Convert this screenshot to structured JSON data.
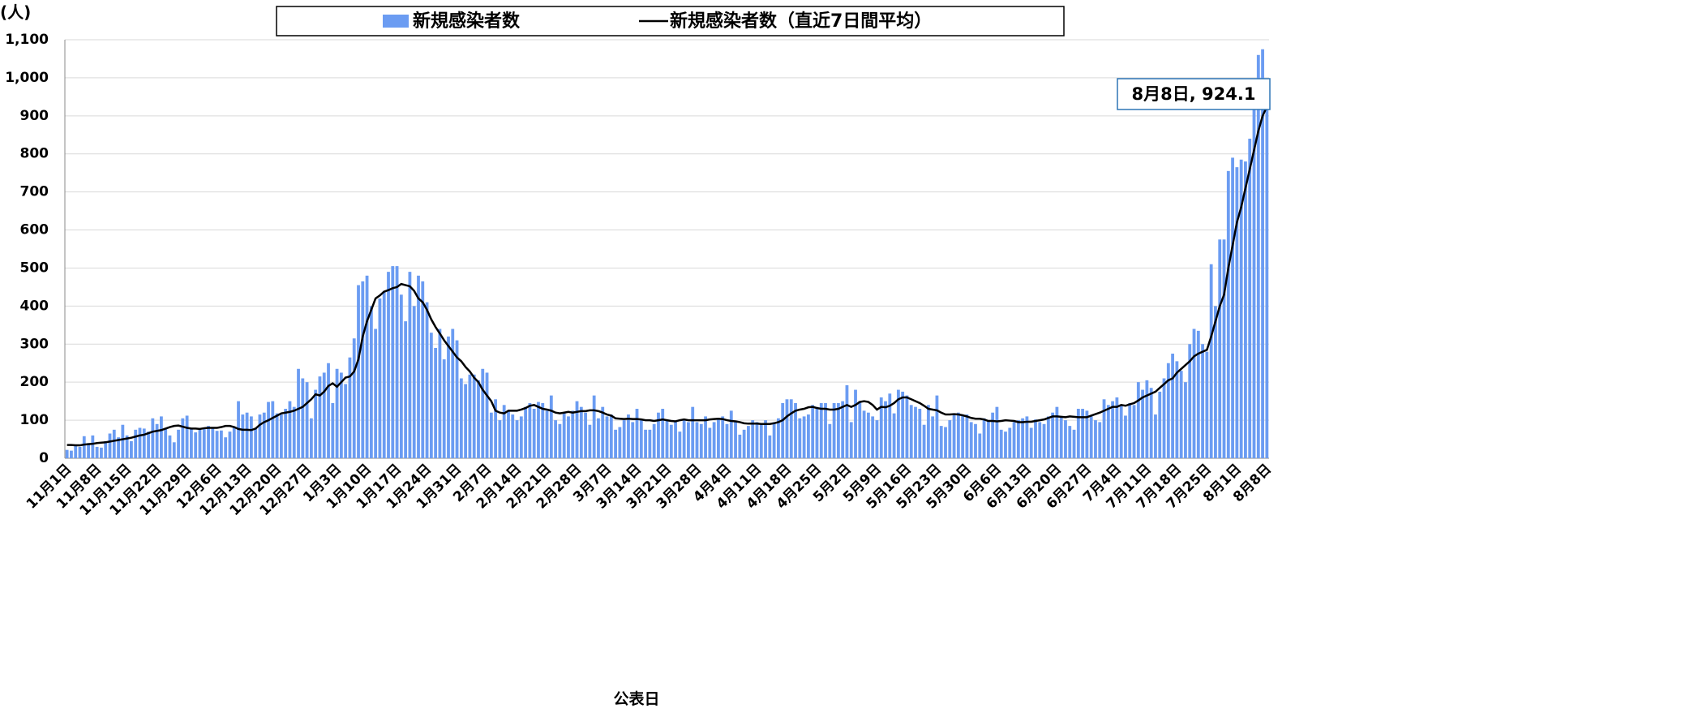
{
  "chart_data": {
    "type": "bar",
    "y_axis_label": "(人)",
    "x_axis_label": "公表日",
    "annotation": "8月8日, 924.1",
    "ylim": [
      0,
      1100
    ],
    "yticks": [
      0,
      100,
      200,
      300,
      400,
      500,
      600,
      700,
      800,
      900,
      {
        "value": 1000,
        "label": "1,000"
      },
      {
        "value": 1100,
        "label": "1,100"
      }
    ],
    "grid": true,
    "categories": [
      "11月1日",
      null,
      null,
      null,
      null,
      null,
      null,
      "11月8日",
      null,
      null,
      null,
      null,
      null,
      null,
      "11月15日",
      null,
      null,
      null,
      null,
      null,
      null,
      "11月22日",
      null,
      null,
      null,
      null,
      null,
      null,
      "11月29日",
      null,
      null,
      null,
      null,
      null,
      null,
      "12月6日",
      null,
      null,
      null,
      null,
      null,
      null,
      "12月13日",
      null,
      null,
      null,
      null,
      null,
      null,
      "12月20日",
      null,
      null,
      null,
      null,
      null,
      null,
      "12月27日",
      null,
      null,
      null,
      null,
      null,
      null,
      "1月3日",
      null,
      null,
      null,
      null,
      null,
      null,
      "1月10日",
      null,
      null,
      null,
      null,
      null,
      null,
      "1月17日",
      null,
      null,
      null,
      null,
      null,
      null,
      "1月24日",
      null,
      null,
      null,
      null,
      null,
      null,
      "1月31日",
      null,
      null,
      null,
      null,
      null,
      null,
      "2月7日",
      null,
      null,
      null,
      null,
      null,
      null,
      "2月14日",
      null,
      null,
      null,
      null,
      null,
      null,
      "2月21日",
      null,
      null,
      null,
      null,
      null,
      null,
      "2月28日",
      null,
      null,
      null,
      null,
      null,
      null,
      "3月7日",
      null,
      null,
      null,
      null,
      null,
      null,
      "3月14日",
      null,
      null,
      null,
      null,
      null,
      null,
      "3月21日",
      null,
      null,
      null,
      null,
      null,
      null,
      "3月28日",
      null,
      null,
      null,
      null,
      null,
      null,
      "4月4日",
      null,
      null,
      null,
      null,
      null,
      null,
      "4月11日",
      null,
      null,
      null,
      null,
      null,
      null,
      "4月18日",
      null,
      null,
      null,
      null,
      null,
      null,
      "4月25日",
      null,
      null,
      null,
      null,
      null,
      null,
      "5月2日",
      null,
      null,
      null,
      null,
      null,
      null,
      "5月9日",
      null,
      null,
      null,
      null,
      null,
      null,
      "5月16日",
      null,
      null,
      null,
      null,
      null,
      null,
      "5月23日",
      null,
      null,
      null,
      null,
      null,
      null,
      "5月30日",
      null,
      null,
      null,
      null,
      null,
      null,
      "6月6日",
      null,
      null,
      null,
      null,
      null,
      null,
      "6月13日",
      null,
      null,
      null,
      null,
      null,
      null,
      "6月20日",
      null,
      null,
      null,
      null,
      null,
      null,
      "6月27日",
      null,
      null,
      null,
      null,
      null,
      null,
      "7月4日",
      null,
      null,
      null,
      null,
      null,
      null,
      "7月11日",
      null,
      null,
      null,
      null,
      null,
      null,
      "7月18日",
      null,
      null,
      null,
      null,
      null,
      null,
      "7月25日",
      null,
      null,
      null,
      null,
      null,
      null,
      "8月1日",
      null,
      null,
      null,
      null,
      null,
      null,
      "8月8日"
    ],
    "series": [
      {
        "name": "新規感染者数",
        "type": "bar",
        "color": "#6b9cf2",
        "values": [
          22,
          20,
          35,
          30,
          58,
          40,
          60,
          30,
          28,
          45,
          65,
          75,
          55,
          88,
          60,
          45,
          75,
          80,
          78,
          70,
          105,
          90,
          110,
          80,
          60,
          42,
          75,
          105,
          112,
          78,
          68,
          75,
          78,
          85,
          80,
          72,
          73,
          55,
          70,
          80,
          150,
          115,
          120,
          110,
          80,
          115,
          120,
          148,
          150,
          118,
          115,
          130,
          150,
          135,
          235,
          210,
          200,
          105,
          180,
          215,
          225,
          250,
          145,
          235,
          225,
          195,
          265,
          315,
          455,
          465,
          480,
          400,
          340,
          420,
          440,
          490,
          505,
          505,
          430,
          360,
          490,
          400,
          480,
          465,
          410,
          330,
          290,
          340,
          260,
          320,
          340,
          310,
          210,
          195,
          220,
          220,
          205,
          235,
          225,
          120,
          155,
          100,
          140,
          125,
          115,
          100,
          110,
          135,
          145,
          130,
          148,
          145,
          125,
          165,
          100,
          90,
          120,
          110,
          125,
          150,
          135,
          120,
          88,
          165,
          105,
          135,
          110,
          115,
          75,
          82,
          100,
          115,
          95,
          130,
          100,
          75,
          75,
          90,
          120,
          130,
          100,
          88,
          95,
          70,
          100,
          95,
          135,
          95,
          90,
          110,
          80,
          95,
          105,
          110,
          90,
          125,
          95,
          62,
          75,
          85,
          100,
          95,
          88,
          100,
          60,
          95,
          105,
          145,
          155,
          155,
          145,
          105,
          110,
          115,
          140,
          135,
          145,
          145,
          90,
          145,
          145,
          150,
          192,
          95,
          180,
          150,
          125,
          120,
          110,
          100,
          160,
          150,
          170,
          118,
          180,
          175,
          165,
          140,
          135,
          130,
          88,
          140,
          110,
          165,
          85,
          82,
          100,
          115,
          120,
          115,
          115,
          95,
          90,
          65,
          105,
          100,
          120,
          135,
          75,
          70,
          80,
          95,
          100,
          105,
          110,
          80,
          102,
          95,
          90,
          110,
          120,
          135,
          110,
          100,
          85,
          75,
          130,
          130,
          125,
          110,
          100,
          95,
          155,
          140,
          150,
          160,
          140,
          112,
          145,
          140,
          200,
          180,
          205,
          185,
          115,
          175,
          210,
          250,
          275,
          255,
          230,
          200,
          300,
          340,
          335,
          300,
          280,
          510,
          400,
          575,
          575,
          755,
          790,
          765,
          785,
          780,
          840,
          945,
          1060,
          1075,
          988
        ]
      },
      {
        "name": "新規感染者数（直近7日間平均）",
        "type": "line",
        "color": "#000000",
        "values": [
          35,
          35,
          34,
          34,
          36,
          37,
          38,
          40,
          41,
          42,
          44,
          46,
          48,
          50,
          52,
          54,
          57,
          60,
          62,
          66,
          70,
          72,
          74,
          78,
          82,
          85,
          86,
          83,
          80,
          78,
          78,
          77,
          79,
          80,
          80,
          80,
          82,
          85,
          85,
          82,
          77,
          75,
          75,
          74,
          78,
          88,
          95,
          100,
          106,
          112,
          118,
          120,
          122,
          125,
          130,
          135,
          145,
          155,
          168,
          165,
          175,
          190,
          197,
          188,
          200,
          212,
          215,
          228,
          260,
          320,
          360,
          390,
          420,
          428,
          438,
          442,
          447,
          450,
          458,
          455,
          452,
          440,
          420,
          410,
          390,
          365,
          345,
          328,
          310,
          295,
          280,
          265,
          255,
          240,
          228,
          212,
          200,
          180,
          165,
          150,
          125,
          120,
          118,
          125,
          125,
          125,
          128,
          132,
          138,
          140,
          135,
          130,
          128,
          125,
          120,
          118,
          120,
          122,
          120,
          122,
          124,
          124,
          126,
          126,
          124,
          120,
          115,
          112,
          105,
          104,
          103,
          104,
          103,
          103,
          102,
          100,
          100,
          98,
          100,
          102,
          100,
          98,
          97,
          100,
          102,
          100,
          100,
          100,
          100,
          100,
          102,
          103,
          104,
          103,
          100,
          98,
          97,
          95,
          92,
          91,
          91,
          91,
          90,
          90,
          90,
          92,
          95,
          100,
          110,
          118,
          125,
          128,
          130,
          134,
          135,
          132,
          130,
          130,
          128,
          128,
          130,
          135,
          140,
          135,
          140,
          148,
          150,
          148,
          140,
          128,
          135,
          134,
          138,
          145,
          155,
          160,
          160,
          155,
          150,
          145,
          138,
          130,
          128,
          126,
          120,
          115,
          115,
          116,
          115,
          113,
          110,
          106,
          104,
          104,
          102,
          98,
          98,
          97,
          98,
          100,
          99,
          98,
          95,
          95,
          96,
          96,
          98,
          100,
          102,
          106,
          110,
          110,
          109,
          108,
          110,
          109,
          108,
          108,
          108,
          112,
          116,
          120,
          125,
          130,
          135,
          135,
          140,
          138,
          142,
          145,
          152,
          160,
          165,
          170,
          175,
          185,
          195,
          205,
          210,
          225,
          235,
          245,
          255,
          268,
          275,
          280,
          285,
          320,
          360,
          400,
          430,
          500,
          560,
          620,
          660,
          710,
          760,
          810,
          860,
          900,
          924.1
        ]
      }
    ]
  }
}
